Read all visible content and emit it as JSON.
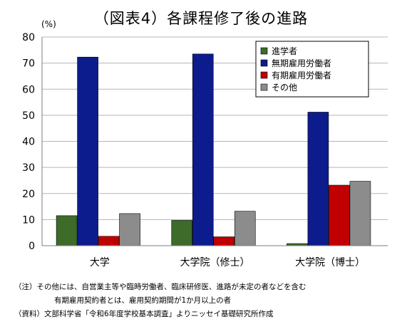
{
  "chart_data": {
    "type": "bar",
    "title": "（図表4）各課程修了後の進路",
    "ylabel": "(%)",
    "xlabel": "",
    "categories": [
      "大学",
      "大学院（修士）",
      "大学院（博士）"
    ],
    "ylim": [
      0,
      80
    ],
    "yticks": [
      0,
      10,
      20,
      30,
      40,
      50,
      60,
      70,
      80
    ],
    "grid": true,
    "legend_position": "top-right",
    "series": [
      {
        "name": "進学者",
        "color": "#3e6b29",
        "values": [
          11.5,
          9.7,
          0.8
        ]
      },
      {
        "name": "無期雇用労働者",
        "color": "#0d1c8c",
        "values": [
          72.3,
          73.5,
          51.2
        ]
      },
      {
        "name": "有期雇用労働者",
        "color": "#c00000",
        "values": [
          3.6,
          3.4,
          23.2
        ]
      },
      {
        "name": "その他",
        "color": "#8c8c8c",
        "values": [
          12.3,
          13.2,
          24.7
        ]
      }
    ]
  },
  "notes": {
    "note1": "（注）その他には、自営業主等や臨時労働者、臨床研修医、進路が未定の者などを含む",
    "note2": "有期雇用契約者とは、雇用契約期間が1か月以上の者",
    "source": "（資料）文部科学省「令和6年度学校基本調査」よりニッセイ基礎研究所作成"
  }
}
